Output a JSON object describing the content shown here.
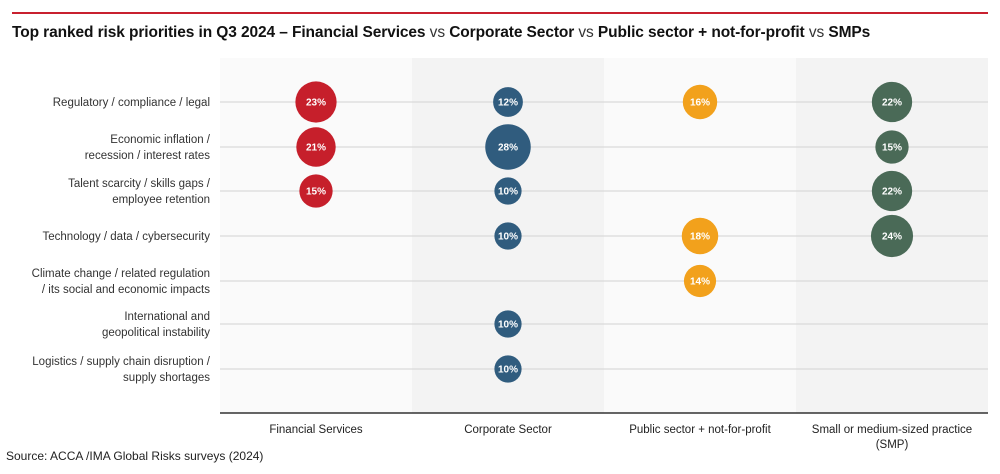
{
  "title": {
    "parts": [
      {
        "text": "Top ranked risk priorities in Q3 2024 – Financial Services",
        "bold": true
      },
      {
        "text": " vs ",
        "bold": false
      },
      {
        "text": "Corporate Sector",
        "bold": true
      },
      {
        "text": " vs ",
        "bold": false
      },
      {
        "text": "Public sector + not-for-profit",
        "bold": true
      },
      {
        "text": " vs ",
        "bold": false
      },
      {
        "text": "SMPs",
        "bold": true
      }
    ]
  },
  "source": "Source: ACCA /IMA Global Risks surveys (2024)",
  "chart_data": {
    "type": "bubble-matrix",
    "title": "Top ranked risk priorities in Q3 2024 – Financial Services vs Corporate Sector vs Public sector + not-for-profit vs SMPs",
    "unit": "%",
    "rows": [
      [
        "Regulatory / compliance / legal"
      ],
      [
        "Economic inflation /",
        "recession / interest rates"
      ],
      [
        "Talent scarcity / skills gaps /",
        "employee retention"
      ],
      [
        "Technology / data / cybersecurity"
      ],
      [
        "Climate change / related regulation",
        "/ its social and economic impacts"
      ],
      [
        "International and",
        "geopolitical instability"
      ],
      [
        "Logistics / supply chain disruption /",
        "supply shortages"
      ]
    ],
    "categories": [
      [
        "Financial Services"
      ],
      [
        "Corporate Sector"
      ],
      [
        "Public sector + not-for-profit"
      ],
      [
        "Small or medium-sized practice",
        "(SMP)"
      ]
    ],
    "series": [
      {
        "name": "Financial Services",
        "color": "#c61f2b",
        "values": [
          23,
          21,
          15,
          null,
          null,
          null,
          null
        ]
      },
      {
        "name": "Corporate Sector",
        "color": "#305c7e",
        "values": [
          12,
          28,
          10,
          10,
          null,
          10,
          10
        ]
      },
      {
        "name": "Public sector + not-for-profit",
        "color": "#f2a11c",
        "values": [
          16,
          null,
          null,
          18,
          14,
          null,
          null
        ]
      },
      {
        "name": "Small or medium-sized practice (SMP)",
        "color": "#4a6a57",
        "values": [
          22,
          15,
          22,
          24,
          null,
          null,
          null
        ]
      }
    ],
    "column_backgrounds": [
      "#fafafa",
      "#f3f3f3",
      "#fafafa",
      "#f3f3f3"
    ],
    "grid": true,
    "legend": "none"
  }
}
